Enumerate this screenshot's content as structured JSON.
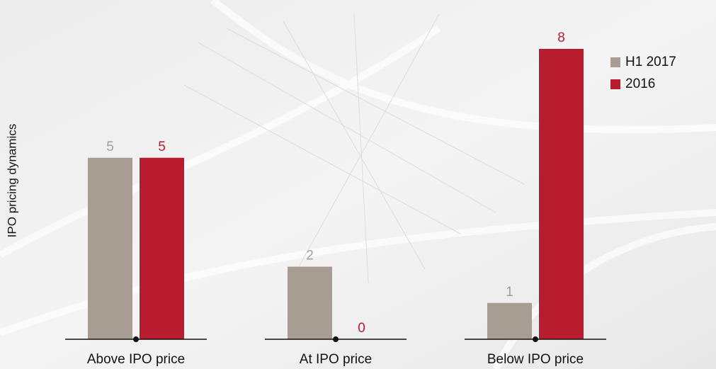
{
  "chart_data": {
    "type": "bar",
    "ylabel": "IPO pricing dynamics",
    "categories": [
      "Above IPO price",
      "At IPO price",
      "Below IPO price"
    ],
    "series": [
      {
        "name": "H1 2017",
        "color": "#a79d92",
        "values": [
          5,
          2,
          1
        ]
      },
      {
        "name": "2016",
        "color": "#b81c2e",
        "values": [
          5,
          0,
          8
        ]
      }
    ],
    "legend": "upper right"
  }
}
